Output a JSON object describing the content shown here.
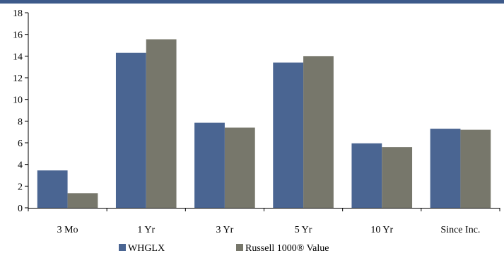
{
  "chart_data": {
    "type": "bar",
    "categories": [
      "3 Mo",
      "1 Yr",
      "3 Yr",
      "5 Yr",
      "10 Yr",
      "Since Inc."
    ],
    "series": [
      {
        "name": "WHGLX",
        "color": "#4a6592",
        "values": [
          3.45,
          14.3,
          7.85,
          13.4,
          5.95,
          7.3
        ]
      },
      {
        "name": "Russell 1000® Value",
        "color": "#77776b",
        "values": [
          1.35,
          15.55,
          7.4,
          14.0,
          5.6,
          7.2
        ]
      }
    ],
    "ylim": [
      0,
      18
    ],
    "yticks": [
      0,
      2,
      4,
      6,
      8,
      10,
      12,
      14,
      16,
      18
    ],
    "title": "",
    "xlabel": "",
    "ylabel": "",
    "grid": false,
    "legend_position": "bottom-center"
  },
  "colors": {
    "header_band": "#3d5a8a",
    "axis": "#000000"
  }
}
